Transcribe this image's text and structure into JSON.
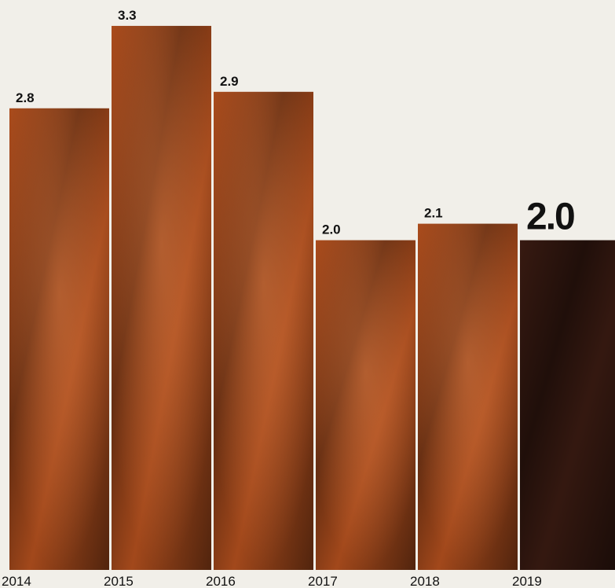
{
  "chart_data": {
    "type": "bar",
    "categories": [
      "2014",
      "2015",
      "2016",
      "2017",
      "2018",
      "2019"
    ],
    "values": [
      2.8,
      3.3,
      2.9,
      2.0,
      2.1,
      2.0
    ],
    "value_labels": [
      "2.8",
      "3.3",
      "2.9",
      "2.0",
      "2.1",
      "2.0"
    ],
    "color": "#b4501e",
    "highlight_color": "#3a1b12",
    "ylim": [
      0,
      3.5
    ]
  }
}
